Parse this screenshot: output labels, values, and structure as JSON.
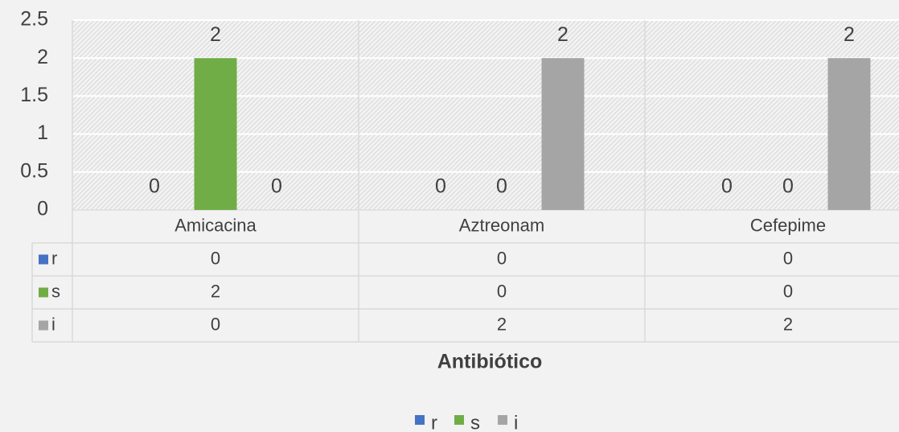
{
  "chart_data": {
    "type": "bar",
    "x_label": "Antibiótico",
    "categories": [
      "Amicacina",
      "Aztreonam",
      "Cefepime"
    ],
    "series": [
      {
        "name": "r",
        "color": "#4472c4",
        "values": [
          0,
          0,
          0
        ]
      },
      {
        "name": "s",
        "color": "#70ad47",
        "values": [
          2,
          0,
          0
        ]
      },
      {
        "name": "i",
        "color": "#a5a5a5",
        "values": [
          0,
          2,
          2
        ]
      }
    ],
    "ylim": [
      0,
      2.5
    ],
    "yticks": [
      0,
      0.5,
      1,
      1.5,
      2,
      2.5
    ],
    "grid": true,
    "legend": "bottom",
    "data_table": true
  }
}
